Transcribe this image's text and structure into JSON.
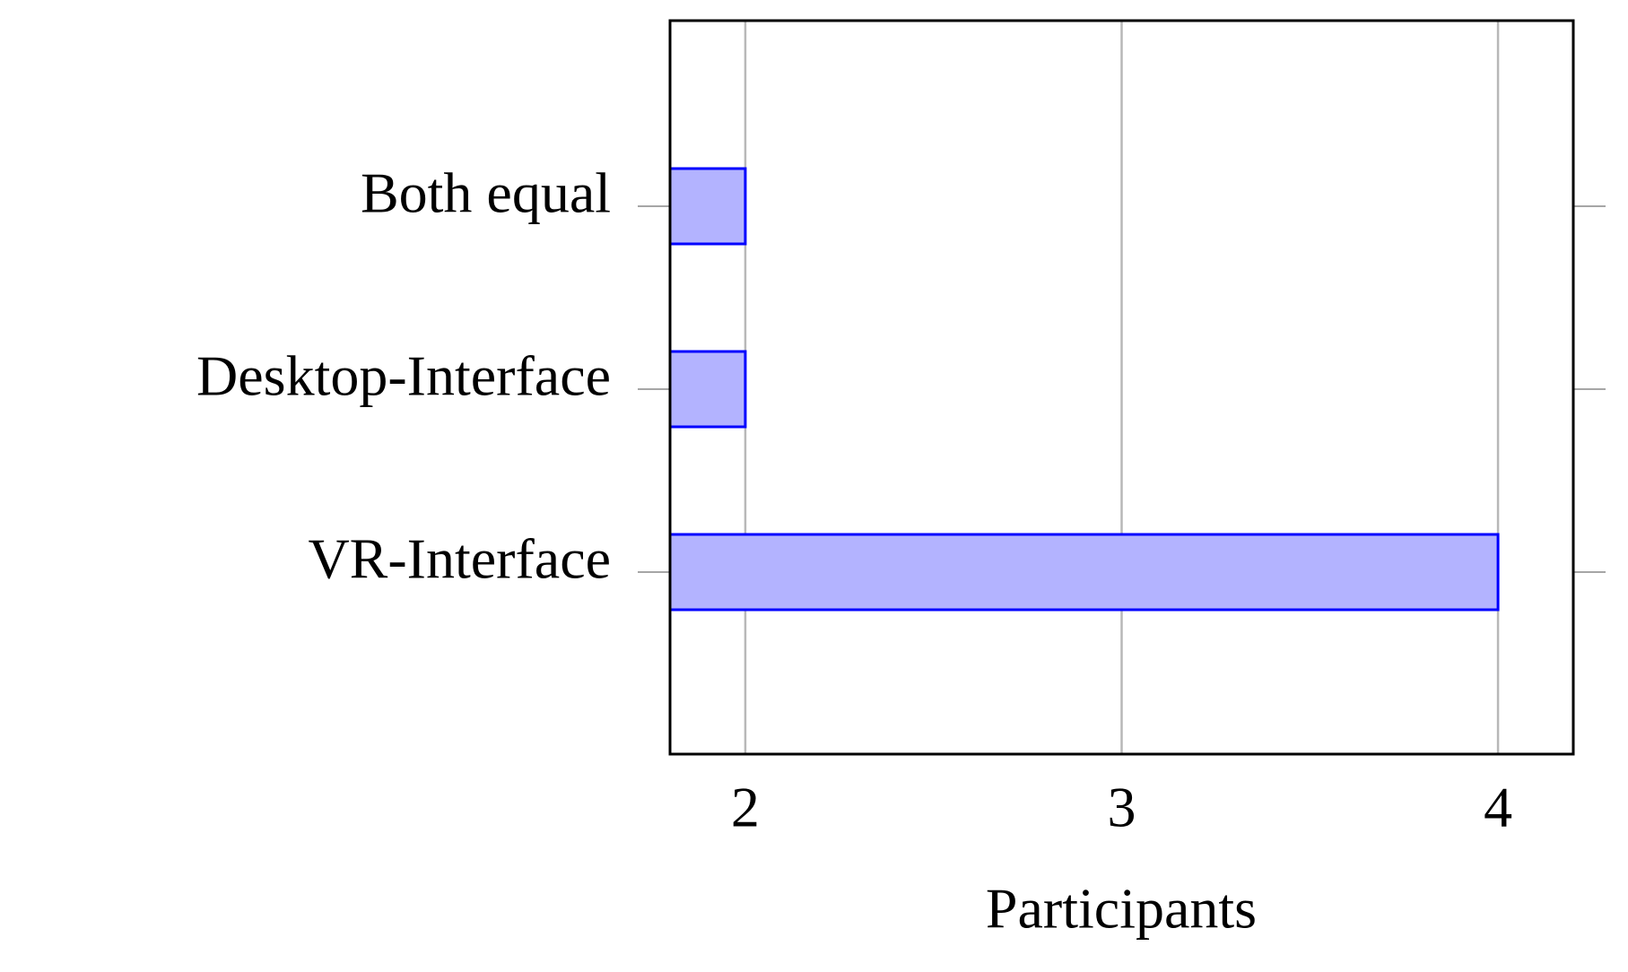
{
  "chart_data": {
    "type": "hbar",
    "categories": [
      "Both equal",
      "Desktop-Interface",
      "VR-Interface"
    ],
    "values": [
      2,
      2,
      4
    ],
    "color": "#b3b3ff",
    "edge_color": "#0000ff",
    "xlabel": "Participants",
    "xlim": [
      1.8,
      4.2
    ],
    "xticks": [
      2,
      3,
      4
    ],
    "grid": true
  }
}
